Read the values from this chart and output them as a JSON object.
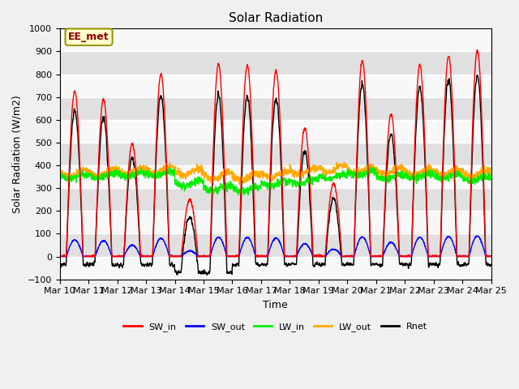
{
  "title": "Solar Radiation",
  "ylabel": "Solar Radiation (W/m2)",
  "xlabel": "Time",
  "ylim": [
    -100,
    1000
  ],
  "xlim": [
    0,
    15
  ],
  "x_tick_labels": [
    "Mar 10",
    "Mar 11",
    "Mar 12",
    "Mar 13",
    "Mar 14",
    "Mar 15",
    "Mar 16",
    "Mar 17",
    "Mar 18",
    "Mar 19",
    "Mar 20",
    "Mar 21",
    "Mar 22",
    "Mar 23",
    "Mar 24",
    "Mar 25"
  ],
  "plot_bg": "#e8e8e8",
  "fig_bg": "#f0f0f0",
  "annotation_text": "EE_met",
  "annotation_bg": "#ffffcc",
  "annotation_border": "#999900",
  "legend_entries": [
    "SW_in",
    "SW_out",
    "LW_in",
    "LW_out",
    "Rnet"
  ],
  "line_colors": [
    "#ff0000",
    "#0000ff",
    "#00ee00",
    "#ffaa00",
    "#000000"
  ],
  "title_fontsize": 11,
  "label_fontsize": 9,
  "tick_fontsize": 8
}
